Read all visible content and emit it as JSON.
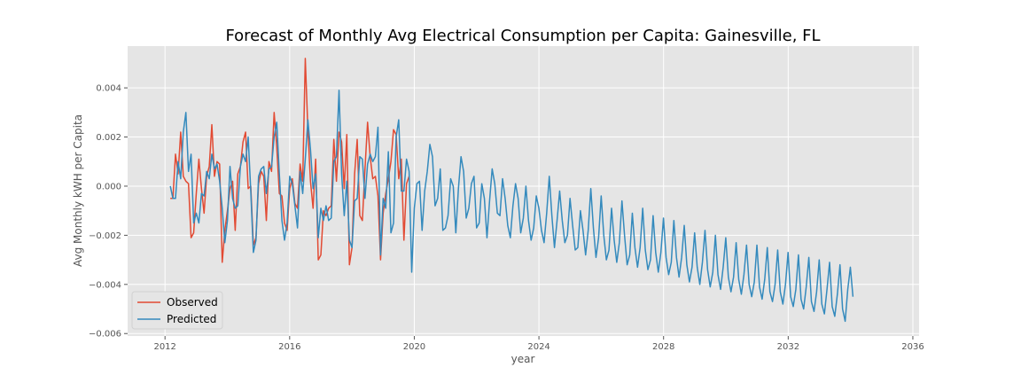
{
  "chart_data": {
    "type": "line",
    "title": "Forecast of Monthly Avg Electrical Consumption per Capita: Gainesville, FL",
    "xlabel": "year",
    "ylabel": "Avg Monthly kWH per Capita",
    "xlim": [
      2010.8,
      2036.2
    ],
    "ylim": [
      -0.0061,
      0.0057
    ],
    "xticks": [
      2012,
      2016,
      2020,
      2024,
      2028,
      2032,
      2036
    ],
    "xtick_labels": [
      "2012",
      "2016",
      "2020",
      "2024",
      "2028",
      "2032",
      "2036"
    ],
    "yticks": [
      -0.006,
      -0.004,
      -0.002,
      0.0,
      0.002,
      0.004
    ],
    "ytick_labels": [
      "−0.006",
      "−0.004",
      "−0.002",
      "0.000",
      "0.002",
      "0.004"
    ],
    "grid": true,
    "legend_position": "lower-left",
    "background_color": "#e5e5e5",
    "grid_color": "#ffffff",
    "series": [
      {
        "name": "Observed",
        "color": "#e24a33",
        "x_start": 2012.17,
        "step": 0.0833,
        "values": [
          -0.0005,
          -0.0005,
          0.0013,
          0.0005,
          0.0022,
          0.0004,
          0.0002,
          0.0001,
          -0.0021,
          -0.0019,
          -0.0003,
          0.0011,
          -0.0001,
          -0.0011,
          0.0004,
          0.0008,
          0.0025,
          0.0004,
          0.001,
          0.0009,
          -0.0031,
          -0.0018,
          -0.001,
          -0.0001,
          0.0002,
          -0.0018,
          0.0005,
          0.0008,
          0.0018,
          0.0022,
          -0.0001,
          0.0,
          -0.0024,
          -0.0021,
          0.0001,
          0.0006,
          0.0004,
          -0.0014,
          0.001,
          0.0006,
          0.003,
          0.0016,
          -0.0003,
          -0.0004,
          -0.0015,
          -0.0018,
          -0.0001,
          0.0003,
          -0.0007,
          -0.0009,
          0.0009,
          0.0002,
          0.0052,
          0.0023,
          0.0002,
          -0.0009,
          0.0011,
          -0.003,
          -0.0028,
          -0.001,
          -0.0012,
          -0.0009,
          -0.0008,
          0.0019,
          0.0002,
          0.0022,
          0.0018,
          -0.0001,
          0.0021,
          -0.0032,
          -0.0025,
          0.0005,
          0.0019,
          -0.0012,
          -0.0014,
          0.0007,
          0.0026,
          0.0012,
          0.0003,
          0.0004,
          -0.0004,
          -0.003,
          -0.0011,
          -0.0003,
          0.0003,
          0.001,
          0.0023,
          0.0021,
          0.0003,
          0.0011,
          -0.0022,
          0.0001,
          0.0004
        ]
      },
      {
        "name": "Predicted",
        "color": "#348abd",
        "x_start": 2012.17,
        "step": 0.0833,
        "values": [
          0.0,
          -0.0005,
          -0.0005,
          0.001,
          0.0003,
          0.0022,
          0.003,
          0.0006,
          0.0013,
          -0.0015,
          -0.0011,
          -0.0015,
          -0.0003,
          -0.0004,
          0.0006,
          0.0003,
          0.0013,
          0.0007,
          0.0009,
          0.0002,
          -0.0009,
          -0.0023,
          -0.0014,
          0.0008,
          -0.0005,
          -0.0009,
          -0.0008,
          0.0008,
          0.0013,
          0.001,
          0.002,
          -0.0002,
          -0.0027,
          -0.0022,
          0.0004,
          0.0007,
          0.0008,
          -0.0003,
          0.0007,
          0.0008,
          0.002,
          0.0026,
          0.0005,
          -0.0014,
          -0.0022,
          -0.0015,
          0.0004,
          0.0001,
          -0.0008,
          -0.0017,
          0.0006,
          -0.0003,
          0.0011,
          0.0027,
          0.0015,
          -0.0001,
          0.0005,
          -0.0021,
          -0.0009,
          -0.0014,
          -0.0008,
          -0.0014,
          -0.0013,
          0.001,
          0.0012,
          0.0039,
          0.0005,
          -0.0012,
          0.0002,
          -0.0022,
          -0.0025,
          -0.0006,
          -0.0005,
          0.0012,
          0.0011,
          -0.0005,
          0.0009,
          0.0013,
          0.001,
          0.0012,
          0.0024,
          -0.0028,
          -0.0005,
          -0.0009,
          0.0014,
          -0.0019,
          -0.0015,
          0.002,
          0.0027,
          -0.0002,
          -0.0002,
          0.0011,
          0.0006,
          -0.0035,
          -0.0009,
          0.0001,
          0.0002,
          -0.0018,
          -0.0002,
          0.0006,
          0.0017,
          0.0012,
          -0.0008,
          -0.0005,
          0.0007,
          -0.0018,
          -0.0017,
          -0.0012,
          0.0003,
          0.0,
          -0.0019,
          -0.0001,
          0.0012,
          0.0006,
          -0.0013,
          -0.0009,
          0.0001,
          0.0004,
          -0.0017,
          -0.0015,
          0.0001,
          -0.0005,
          -0.0021,
          -0.0006,
          0.0007,
          0.0001,
          -0.0011,
          -0.0012,
          0.0003,
          -0.0005,
          -0.0016,
          -0.0021,
          -0.0008,
          0.0001,
          -0.0005,
          -0.0019,
          -0.0013,
          0.0,
          -0.0014,
          -0.0022,
          -0.0017,
          -0.0004,
          -0.0009,
          -0.0018,
          -0.0023,
          -0.0011,
          0.0004,
          -0.0012,
          -0.0025,
          -0.0014,
          -0.0002,
          -0.0014,
          -0.0023,
          -0.002,
          -0.0005,
          -0.0016,
          -0.0026,
          -0.0025,
          -0.001,
          -0.0018,
          -0.0028,
          -0.0018,
          -0.0001,
          -0.0017,
          -0.0029,
          -0.0021,
          -0.0004,
          -0.002,
          -0.003,
          -0.0026,
          -0.0009,
          -0.0022,
          -0.0031,
          -0.0023,
          -0.0006,
          -0.002,
          -0.0032,
          -0.0028,
          -0.0011,
          -0.0025,
          -0.0033,
          -0.0025,
          -0.0009,
          -0.0026,
          -0.0034,
          -0.003,
          -0.0012,
          -0.0027,
          -0.0035,
          -0.0027,
          -0.0013,
          -0.0029,
          -0.0036,
          -0.0031,
          -0.0014,
          -0.0029,
          -0.0037,
          -0.0029,
          -0.0016,
          -0.0032,
          -0.0039,
          -0.0033,
          -0.0019,
          -0.0033,
          -0.004,
          -0.0031,
          -0.0018,
          -0.0034,
          -0.0041,
          -0.0035,
          -0.002,
          -0.0036,
          -0.0042,
          -0.0033,
          -0.0021,
          -0.0037,
          -0.0043,
          -0.0037,
          -0.0023,
          -0.0038,
          -0.0044,
          -0.0036,
          -0.0024,
          -0.004,
          -0.0045,
          -0.0039,
          -0.0024,
          -0.0041,
          -0.0046,
          -0.0038,
          -0.0025,
          -0.0043,
          -0.0047,
          -0.004,
          -0.0026,
          -0.0043,
          -0.0048,
          -0.004,
          -0.0027,
          -0.0045,
          -0.0049,
          -0.0042,
          -0.0028,
          -0.0046,
          -0.005,
          -0.0041,
          -0.0029,
          -0.0047,
          -0.0051,
          -0.0043,
          -0.003,
          -0.0048,
          -0.0052,
          -0.0042,
          -0.0031,
          -0.0049,
          -0.0053,
          -0.0044,
          -0.0032,
          -0.005,
          -0.0055,
          -0.0042,
          -0.0033,
          -0.0045
        ]
      }
    ]
  }
}
